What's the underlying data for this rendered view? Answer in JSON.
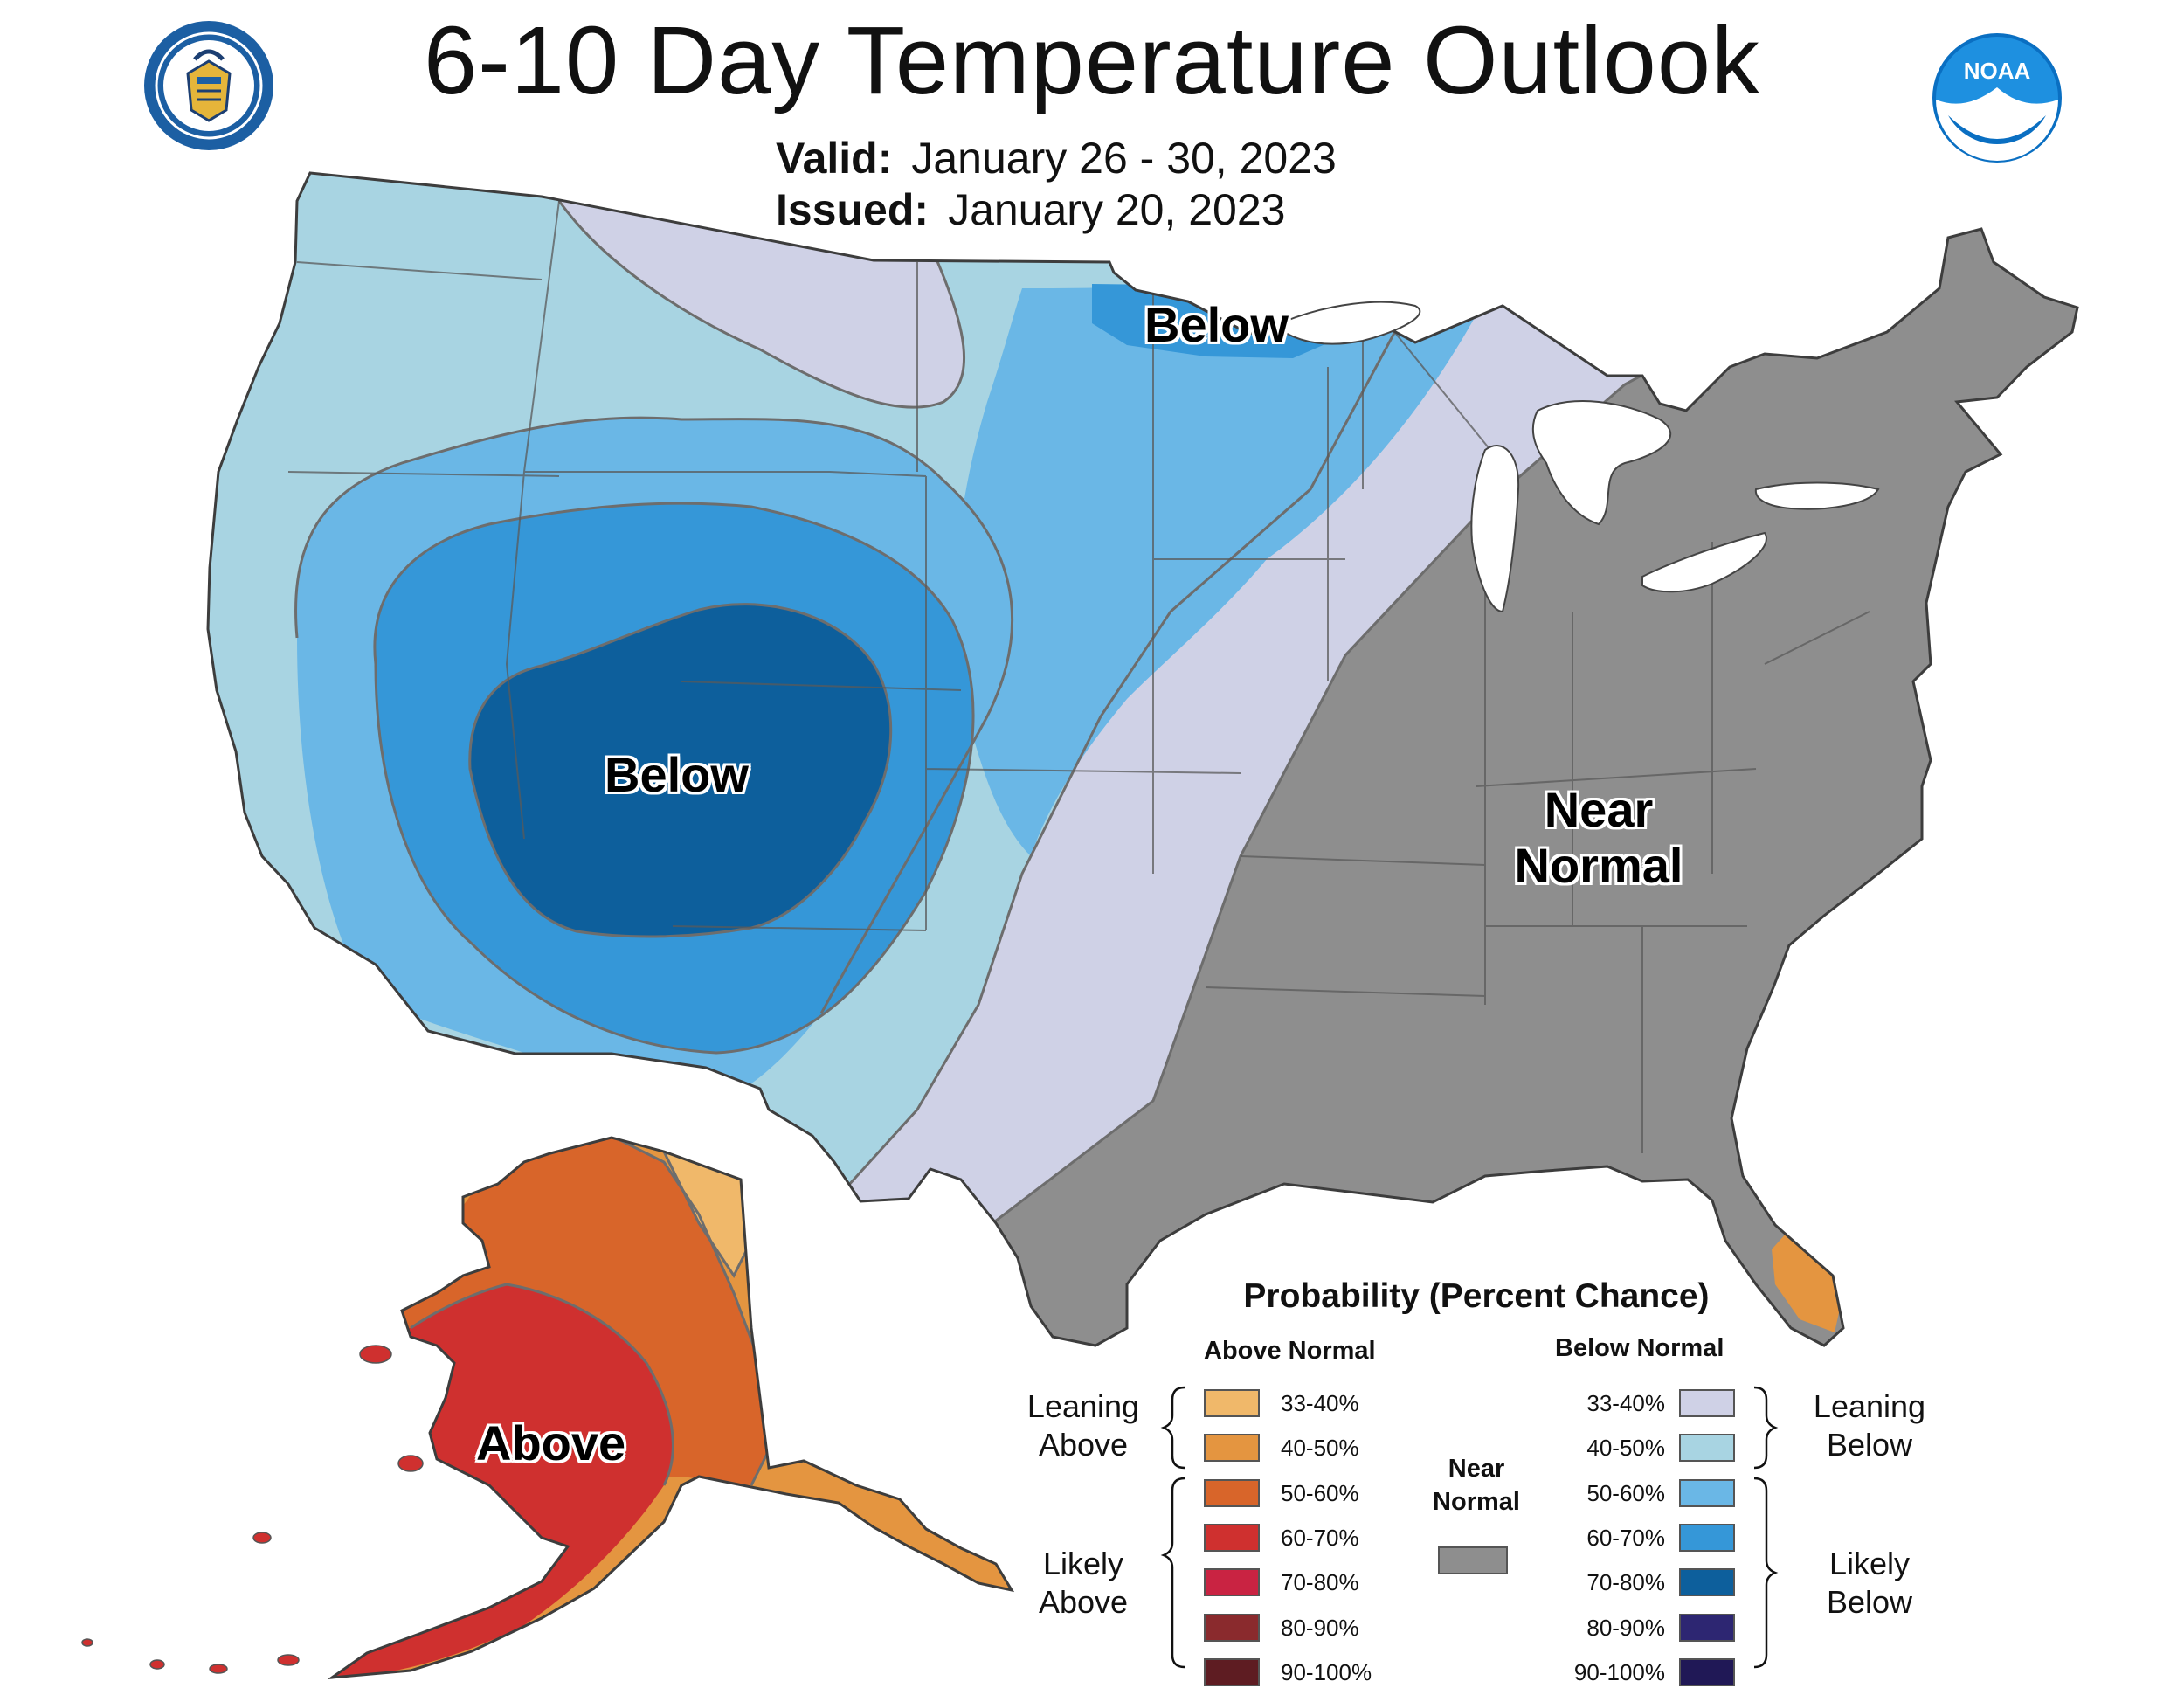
{
  "header": {
    "title": "6-10 Day Temperature Outlook",
    "valid_label": "Valid:",
    "valid_value": "January 26 - 30, 2023",
    "issued_label": "Issued:",
    "issued_value": "January 20, 2023",
    "left_logo": "department-of-commerce-seal",
    "right_logo": "noaa-logo",
    "right_logo_text": "NOAA"
  },
  "map_labels": {
    "below_north": "Below",
    "below_center": "Below",
    "near_normal_line1": "Near",
    "near_normal_line2": "Normal",
    "alaska_above": "Above"
  },
  "legend": {
    "title": "Probability (Percent Chance)",
    "above_header": "Above Normal",
    "below_header": "Below Normal",
    "near_normal_line1": "Near",
    "near_normal_line2": "Normal",
    "near_normal_color": "#8e8e8e",
    "leaning_above_line1": "Leaning",
    "leaning_above_line2": "Above",
    "likely_above_line1": "Likely",
    "likely_above_line2": "Above",
    "leaning_below_line1": "Leaning",
    "leaning_below_line2": "Below",
    "likely_below_line1": "Likely",
    "likely_below_line2": "Below",
    "above": [
      {
        "label": "33-40%",
        "color": "#f0b86a"
      },
      {
        "label": "40-50%",
        "color": "#e49540"
      },
      {
        "label": "50-60%",
        "color": "#d8652a"
      },
      {
        "label": "60-70%",
        "color": "#cf302f"
      },
      {
        "label": "70-80%",
        "color": "#c92342"
      },
      {
        "label": "80-90%",
        "color": "#8a2a2d"
      },
      {
        "label": "90-100%",
        "color": "#5e1c22"
      }
    ],
    "below": [
      {
        "label": "33-40%",
        "color": "#cfd1e6"
      },
      {
        "label": "40-50%",
        "color": "#a8d4e2"
      },
      {
        "label": "50-60%",
        "color": "#6ab7e6"
      },
      {
        "label": "60-70%",
        "color": "#3597d8"
      },
      {
        "label": "70-80%",
        "color": "#0d5f9c"
      },
      {
        "label": "80-90%",
        "color": "#2d2672"
      },
      {
        "label": "90-100%",
        "color": "#201856"
      }
    ]
  }
}
